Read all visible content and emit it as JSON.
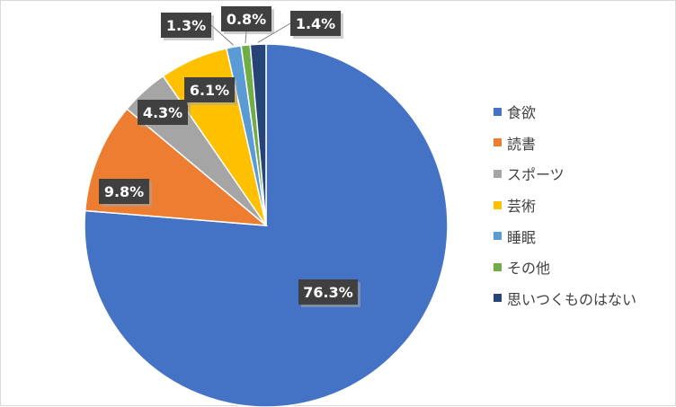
{
  "chart_data": {
    "type": "pie",
    "title": "",
    "categories": [
      "食欲",
      "読書",
      "スポーツ",
      "芸術",
      "睡眠",
      "その他",
      "思いつくものはない"
    ],
    "values": [
      76.3,
      9.8,
      4.3,
      6.1,
      1.3,
      0.8,
      1.4
    ],
    "labels": [
      "76.3%",
      "9.8%",
      "4.3%",
      "6.1%",
      "1.3%",
      "0.8%",
      "1.4%"
    ],
    "colors": [
      "#4472C4",
      "#ED7D31",
      "#A5A5A5",
      "#FFC000",
      "#5B9BD5",
      "#70AD47",
      "#264478"
    ],
    "legend_position": "right",
    "start_angle": "12 o'clock",
    "direction": "clockwise"
  }
}
